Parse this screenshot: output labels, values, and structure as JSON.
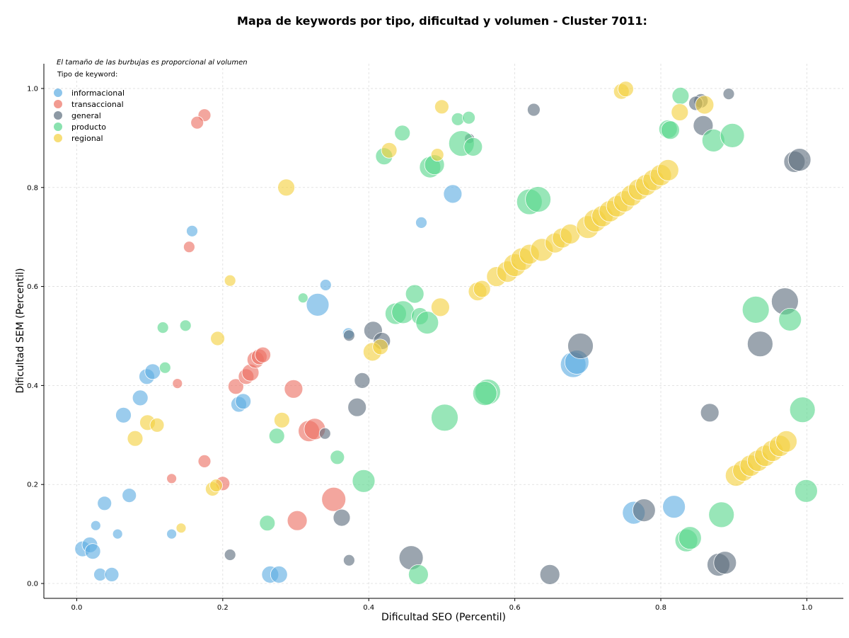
{
  "chart_data": {
    "type": "scatter",
    "title": "Mapa de keywords por tipo, dificultad y volumen - Cluster 7011:",
    "xlabel": "Dificultad SEO (Percentil)",
    "ylabel": "Dificultad SEM (Percentil)",
    "xlim": [
      -0.045,
      1.05
    ],
    "ylim": [
      -0.03,
      1.05
    ],
    "x_ticks": [
      0.0,
      0.2,
      0.4,
      0.6,
      0.8,
      1.0
    ],
    "y_ticks": [
      0.0,
      0.2,
      0.4,
      0.6,
      0.8,
      1.0
    ],
    "x_tick_labels": [
      "0.0",
      "0.2",
      "0.4",
      "0.6",
      "0.8",
      "1.0"
    ],
    "y_tick_labels": [
      "0.0",
      "0.2",
      "0.4",
      "0.6",
      "0.8",
      "1.0"
    ],
    "grid": true,
    "annotation": "El tamaño de las burbujas es proporcional al volumen",
    "legend": {
      "title": "Tipo de keyword:",
      "placement": "top-left"
    },
    "series": [
      {
        "name": "informacional",
        "color": "#5dade2",
        "points": [
          [
            0.158,
            0.712,
            8
          ],
          [
            0.096,
            0.418,
            11
          ],
          [
            0.104,
            0.428,
            11
          ],
          [
            0.087,
            0.375,
            11
          ],
          [
            0.064,
            0.34,
            11
          ],
          [
            0.038,
            0.162,
            10
          ],
          [
            0.072,
            0.178,
            10
          ],
          [
            0.026,
            0.117,
            7
          ],
          [
            0.056,
            0.1,
            7
          ],
          [
            0.008,
            0.07,
            11
          ],
          [
            0.018,
            0.078,
            11
          ],
          [
            0.022,
            0.065,
            11
          ],
          [
            0.032,
            0.018,
            9
          ],
          [
            0.048,
            0.018,
            10
          ],
          [
            0.13,
            0.1,
            7
          ],
          [
            0.222,
            0.362,
            11
          ],
          [
            0.228,
            0.368,
            11
          ],
          [
            0.33,
            0.563,
            16
          ],
          [
            0.341,
            0.603,
            8
          ],
          [
            0.372,
            0.505,
            8
          ],
          [
            0.472,
            0.729,
            8
          ],
          [
            0.515,
            0.787,
            13
          ],
          [
            0.68,
            0.442,
            18
          ],
          [
            0.685,
            0.447,
            17
          ],
          [
            0.763,
            0.143,
            16
          ],
          [
            0.818,
            0.155,
            16
          ],
          [
            0.265,
            0.018,
            12
          ],
          [
            0.277,
            0.018,
            12
          ]
        ]
      },
      {
        "name": "transaccional",
        "color": "#ec7063",
        "points": [
          [
            0.175,
            0.946,
            9
          ],
          [
            0.165,
            0.931,
            9
          ],
          [
            0.154,
            0.68,
            8
          ],
          [
            0.138,
            0.404,
            7
          ],
          [
            0.175,
            0.247,
            9
          ],
          [
            0.13,
            0.212,
            7
          ],
          [
            0.2,
            0.202,
            10
          ],
          [
            0.218,
            0.398,
            11
          ],
          [
            0.232,
            0.418,
            11
          ],
          [
            0.238,
            0.426,
            12
          ],
          [
            0.245,
            0.452,
            12
          ],
          [
            0.25,
            0.458,
            11
          ],
          [
            0.255,
            0.462,
            11
          ],
          [
            0.297,
            0.393,
            13
          ],
          [
            0.318,
            0.308,
            15
          ],
          [
            0.326,
            0.312,
            15
          ],
          [
            0.352,
            0.17,
            17
          ],
          [
            0.302,
            0.127,
            14
          ]
        ]
      },
      {
        "name": "general",
        "color": "#5d6d7e",
        "points": [
          [
            0.626,
            0.957,
            9
          ],
          [
            0.855,
            0.975,
            10
          ],
          [
            0.848,
            0.97,
            10
          ],
          [
            0.893,
            0.989,
            8
          ],
          [
            0.858,
            0.925,
            14
          ],
          [
            0.983,
            0.852,
            15
          ],
          [
            0.99,
            0.856,
            16
          ],
          [
            0.538,
            0.899,
            7
          ],
          [
            0.406,
            0.511,
            13
          ],
          [
            0.418,
            0.49,
            12
          ],
          [
            0.373,
            0.501,
            8
          ],
          [
            0.391,
            0.41,
            11
          ],
          [
            0.384,
            0.356,
            13
          ],
          [
            0.34,
            0.303,
            8
          ],
          [
            0.363,
            0.133,
            12
          ],
          [
            0.373,
            0.047,
            8
          ],
          [
            0.21,
            0.058,
            8
          ],
          [
            0.458,
            0.052,
            17
          ],
          [
            0.648,
            0.018,
            14
          ],
          [
            0.69,
            0.48,
            18
          ],
          [
            0.97,
            0.57,
            19
          ],
          [
            0.936,
            0.484,
            18
          ],
          [
            0.867,
            0.345,
            13
          ],
          [
            0.777,
            0.148,
            16
          ],
          [
            0.879,
            0.038,
            16
          ],
          [
            0.888,
            0.042,
            16
          ]
        ]
      },
      {
        "name": "producto",
        "color": "#58d68d",
        "points": [
          [
            0.827,
            0.985,
            12
          ],
          [
            0.81,
            0.918,
            13
          ],
          [
            0.813,
            0.916,
            13
          ],
          [
            0.872,
            0.895,
            16
          ],
          [
            0.898,
            0.905,
            17
          ],
          [
            0.446,
            0.91,
            11
          ],
          [
            0.522,
            0.938,
            9
          ],
          [
            0.537,
            0.941,
            9
          ],
          [
            0.421,
            0.863,
            12
          ],
          [
            0.484,
            0.841,
            15
          ],
          [
            0.49,
            0.846,
            14
          ],
          [
            0.527,
            0.889,
            18
          ],
          [
            0.543,
            0.882,
            13
          ],
          [
            0.62,
            0.771,
            18
          ],
          [
            0.632,
            0.776,
            18
          ],
          [
            0.118,
            0.517,
            8
          ],
          [
            0.149,
            0.521,
            8
          ],
          [
            0.121,
            0.436,
            8
          ],
          [
            0.31,
            0.577,
            7
          ],
          [
            0.463,
            0.585,
            13
          ],
          [
            0.437,
            0.545,
            15
          ],
          [
            0.447,
            0.548,
            16
          ],
          [
            0.47,
            0.54,
            12
          ],
          [
            0.48,
            0.527,
            16
          ],
          [
            0.563,
            0.387,
            18
          ],
          [
            0.559,
            0.384,
            17
          ],
          [
            0.504,
            0.335,
            19
          ],
          [
            0.274,
            0.298,
            11
          ],
          [
            0.357,
            0.255,
            10
          ],
          [
            0.393,
            0.207,
            16
          ],
          [
            0.261,
            0.122,
            11
          ],
          [
            0.468,
            0.018,
            14
          ],
          [
            0.93,
            0.553,
            19
          ],
          [
            0.977,
            0.533,
            16
          ],
          [
            0.994,
            0.351,
            18
          ],
          [
            0.999,
            0.187,
            16
          ],
          [
            0.883,
            0.139,
            18
          ],
          [
            0.835,
            0.087,
            16
          ],
          [
            0.84,
            0.092,
            16
          ]
        ]
      },
      {
        "name": "regional",
        "color": "#f4d03f",
        "points": [
          [
            0.287,
            0.8,
            12
          ],
          [
            0.5,
            0.963,
            10
          ],
          [
            0.494,
            0.866,
            9
          ],
          [
            0.428,
            0.875,
            11
          ],
          [
            0.746,
            0.994,
            11
          ],
          [
            0.752,
            0.999,
            11
          ],
          [
            0.826,
            0.952,
            12
          ],
          [
            0.86,
            0.967,
            13
          ],
          [
            0.21,
            0.612,
            8
          ],
          [
            0.193,
            0.495,
            10
          ],
          [
            0.097,
            0.325,
            11
          ],
          [
            0.11,
            0.32,
            10
          ],
          [
            0.08,
            0.293,
            11
          ],
          [
            0.281,
            0.33,
            11
          ],
          [
            0.186,
            0.191,
            10
          ],
          [
            0.191,
            0.198,
            9
          ],
          [
            0.143,
            0.112,
            7
          ],
          [
            0.498,
            0.558,
            13
          ],
          [
            0.405,
            0.468,
            13
          ],
          [
            0.416,
            0.478,
            11
          ],
          [
            0.549,
            0.59,
            13
          ],
          [
            0.555,
            0.595,
            12
          ],
          [
            0.575,
            0.62,
            14
          ],
          [
            0.59,
            0.63,
            15
          ],
          [
            0.6,
            0.643,
            16
          ],
          [
            0.61,
            0.655,
            16
          ],
          [
            0.62,
            0.665,
            14
          ],
          [
            0.637,
            0.674,
            16
          ],
          [
            0.655,
            0.688,
            14
          ],
          [
            0.665,
            0.698,
            14
          ],
          [
            0.676,
            0.706,
            14
          ],
          [
            0.7,
            0.72,
            16
          ],
          [
            0.71,
            0.733,
            16
          ],
          [
            0.72,
            0.742,
            15
          ],
          [
            0.73,
            0.752,
            15
          ],
          [
            0.74,
            0.762,
            15
          ],
          [
            0.75,
            0.772,
            15
          ],
          [
            0.76,
            0.784,
            15
          ],
          [
            0.77,
            0.796,
            15
          ],
          [
            0.78,
            0.805,
            15
          ],
          [
            0.79,
            0.815,
            15
          ],
          [
            0.8,
            0.825,
            15
          ],
          [
            0.81,
            0.835,
            15
          ],
          [
            0.903,
            0.218,
            15
          ],
          [
            0.913,
            0.228,
            15
          ],
          [
            0.923,
            0.238,
            15
          ],
          [
            0.933,
            0.248,
            15
          ],
          [
            0.943,
            0.258,
            15
          ],
          [
            0.953,
            0.268,
            15
          ],
          [
            0.963,
            0.278,
            15
          ],
          [
            0.972,
            0.287,
            15
          ]
        ]
      }
    ]
  }
}
